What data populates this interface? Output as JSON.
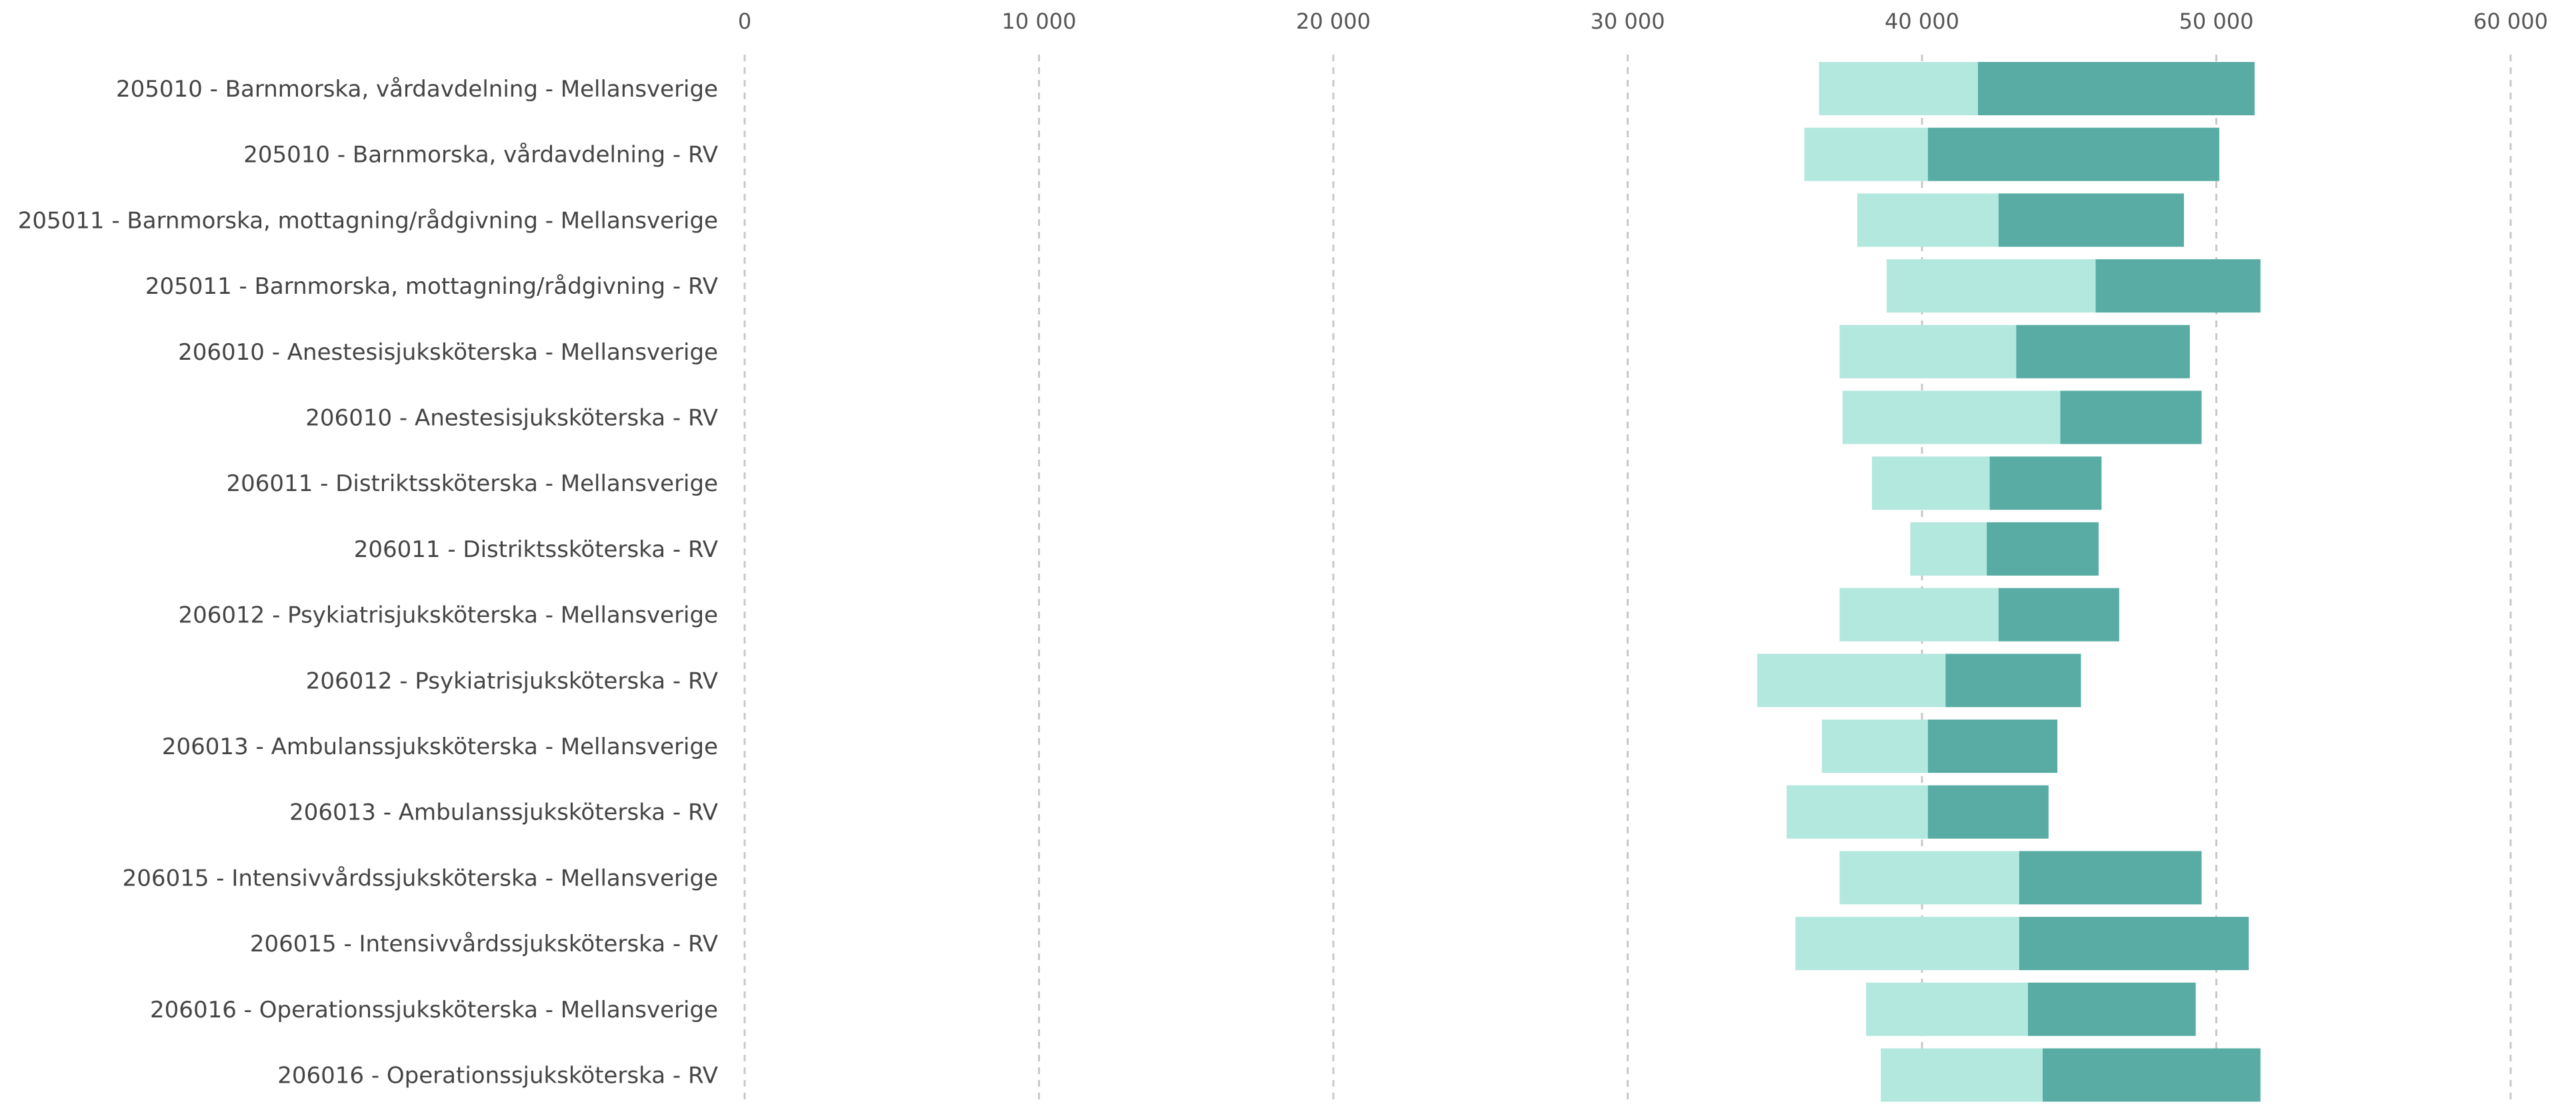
{
  "chart_data": {
    "type": "bar",
    "orientation": "horizontal",
    "stacked_range": true,
    "title": "",
    "xlabel": "",
    "ylabel": "",
    "xlim": [
      0,
      60000
    ],
    "x_ticks": [
      0,
      10000,
      20000,
      30000,
      40000,
      50000,
      60000
    ],
    "x_tick_labels": [
      "0",
      "10 000",
      "20 000",
      "30 000",
      "40 000",
      "50 000",
      "60 000"
    ],
    "x_axis_position": "top",
    "grid": true,
    "legend": "none",
    "colors": {
      "lower_segment": "#b3e8df",
      "upper_segment": "#58aca4"
    },
    "categories": [
      "205010 - Barnmorska, vårdavdelning - Mellansverige",
      "205010 - Barnmorska, vårdavdelning - RV",
      "205011 - Barnmorska, mottagning/rådgivning - Mellansverige",
      "205011 - Barnmorska, mottagning/rådgivning - RV",
      "206010 - Anestesisjuksköterska - Mellansverige",
      "206010 - Anestesisjuksköterska - RV",
      "206011 - Distriktssköterska - Mellansverige",
      "206011 - Distriktssköterska - RV",
      "206012 - Psykiatrisjuksköterska - Mellansverige",
      "206012 - Psykiatrisjuksköterska - RV",
      "206013 - Ambulanssjuksköterska - Mellansverige",
      "206013 - Ambulanssjuksköterska - RV",
      "206015 - Intensivvårdssjuksköterska - Mellansverige",
      "206015 - Intensivvårdssjuksköterska - RV",
      "206016 - Operationssjuksköterska - Mellansverige",
      "206016 - Operationssjuksköterska - RV"
    ],
    "low": [
      36500,
      36000,
      37800,
      38800,
      37200,
      37300,
      38300,
      39600,
      37200,
      34400,
      36600,
      35400,
      37200,
      35700,
      38100,
      38600
    ],
    "mid": [
      41900,
      40200,
      42600,
      45900,
      43200,
      44700,
      42300,
      42200,
      42600,
      40800,
      40200,
      40200,
      43300,
      43300,
      43600,
      44100
    ],
    "high": [
      51300,
      50100,
      48900,
      51500,
      49100,
      49500,
      46100,
      46000,
      46700,
      45400,
      44600,
      44300,
      49500,
      51100,
      49300,
      51500
    ]
  }
}
